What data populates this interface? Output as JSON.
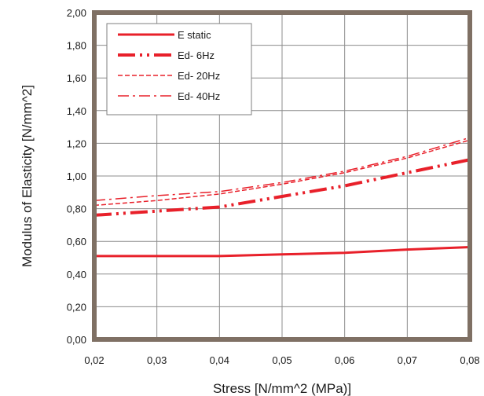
{
  "chart_data": {
    "type": "line",
    "title": "",
    "xlabel": "Stress [N/mm^2 (MPa)]",
    "ylabel": "Modulus of Elasticity [N/mm^2]",
    "xlim": [
      0.02,
      0.08
    ],
    "ylim": [
      0,
      2.0
    ],
    "x_ticks": [
      "0,02",
      "0,03",
      "0,04",
      "0,05",
      "0,06",
      "0,07",
      "0,08"
    ],
    "y_ticks": [
      "0,00",
      "0,20",
      "0,40",
      "0,60",
      "0,80",
      "1,00",
      "1,20",
      "1,40",
      "1,60",
      "1,80",
      "2,00"
    ],
    "grid": true,
    "legend_position": "top-left",
    "line_color": "#e8202a",
    "frame_color": "#7f7064",
    "x": [
      0.02,
      0.03,
      0.04,
      0.05,
      0.06,
      0.07,
      0.08
    ],
    "series": [
      {
        "name": "E static",
        "style": "solid",
        "values": [
          0.51,
          0.51,
          0.51,
          0.52,
          0.53,
          0.55,
          0.565
        ]
      },
      {
        "name": "Ed- 6Hz",
        "style": "dash-dot-dot",
        "values": [
          0.76,
          0.785,
          0.81,
          0.875,
          0.94,
          1.02,
          1.1
        ]
      },
      {
        "name": "Ed- 20Hz",
        "style": "dashed",
        "values": [
          0.82,
          0.85,
          0.89,
          0.95,
          1.02,
          1.11,
          1.22
        ]
      },
      {
        "name": "Ed- 40Hz",
        "style": "dash-dot",
        "values": [
          0.85,
          0.88,
          0.905,
          0.96,
          1.03,
          1.12,
          1.235
        ]
      }
    ]
  }
}
